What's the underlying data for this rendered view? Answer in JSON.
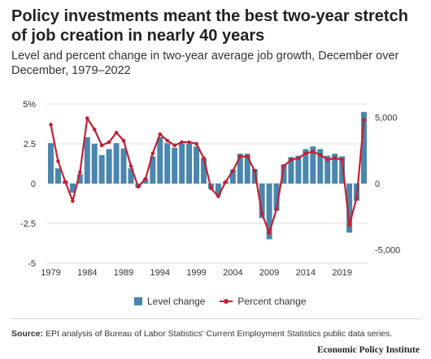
{
  "header": {
    "title": "Policy investments meant the best two-year stretch of job creation in nearly 40 years",
    "subtitle": "Level and percent change in two-year average job growth, December over December, 1979–2022"
  },
  "legend": {
    "bar_label": "Level change",
    "line_label": "Percent change"
  },
  "footer": {
    "source_label": "Source:",
    "source_text": "EPI analysis of Bureau of Labor Statistics' Current Employment Statistics public data series.",
    "logo_text": "Economic Policy Institute"
  },
  "colors": {
    "bar": "#4a86ad",
    "line": "#c32032",
    "grid": "#dcdcdc",
    "axis_text": "#333333"
  },
  "chart_data": {
    "type": "bar+line",
    "x": [
      1979,
      1980,
      1981,
      1982,
      1983,
      1984,
      1985,
      1986,
      1987,
      1988,
      1989,
      1990,
      1991,
      1992,
      1993,
      1994,
      1995,
      1996,
      1997,
      1998,
      1999,
      2000,
      2001,
      2002,
      2003,
      2004,
      2005,
      2006,
      2007,
      2008,
      2009,
      2010,
      2011,
      2012,
      2013,
      2014,
      2015,
      2016,
      2017,
      2018,
      2019,
      2020,
      2021,
      2022
    ],
    "x_tick_labels": [
      "1979",
      "1984",
      "1989",
      "1994",
      "1999",
      "2004",
      "2009",
      "2014",
      "2019"
    ],
    "series": [
      {
        "name": "Level change",
        "type": "bar",
        "axis": "right",
        "values": [
          3050,
          1150,
          200,
          -700,
          700,
          3500,
          3000,
          2150,
          2600,
          3050,
          2650,
          1150,
          -300,
          350,
          2050,
          3500,
          3050,
          2700,
          3000,
          3000,
          2800,
          1900,
          -400,
          -900,
          150,
          1050,
          2250,
          2250,
          1100,
          -2600,
          -4200,
          -2050,
          1450,
          2000,
          2100,
          2600,
          2800,
          2600,
          2100,
          2250,
          2050,
          -3700,
          -1300,
          5400
        ]
      },
      {
        "name": "Percent change",
        "type": "line",
        "axis": "left",
        "values": [
          3.7,
          1.4,
          0.1,
          -1.1,
          0.7,
          4.1,
          3.4,
          2.4,
          2.6,
          3.2,
          2.7,
          1.1,
          -0.2,
          0.3,
          1.9,
          3.1,
          2.7,
          2.4,
          2.6,
          2.6,
          2.5,
          1.6,
          -0.3,
          -0.8,
          0.1,
          0.8,
          1.7,
          1.7,
          0.8,
          -1.9,
          -3.1,
          -1.6,
          1.1,
          1.5,
          1.6,
          1.9,
          2.0,
          1.8,
          1.5,
          1.6,
          1.5,
          -2.6,
          -0.9,
          4.0
        ]
      }
    ],
    "y_left": {
      "lim": [
        -5,
        5
      ],
      "ticks": [
        5,
        2.5,
        0,
        -2.5,
        -5
      ],
      "tick_labels": [
        "5%",
        "2.5",
        "0",
        "-2.5",
        "-5"
      ]
    },
    "y_right": {
      "lim": [
        -6000,
        6000
      ],
      "ticks": [
        5000,
        0,
        -5000
      ],
      "tick_labels": [
        "5,000",
        "0",
        "-5,000"
      ]
    },
    "grid": true,
    "legend_position": "bottom-center"
  }
}
